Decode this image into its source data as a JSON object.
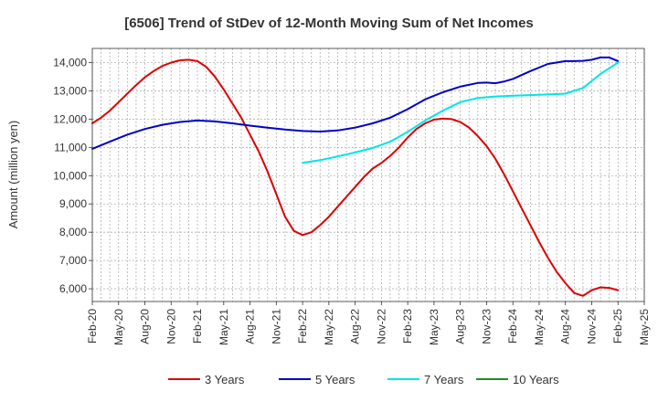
{
  "chart_data": {
    "type": "line",
    "title": "[6506]  Trend of StDev of 12-Month Moving Sum of Net Incomes",
    "xlabel": "",
    "ylabel": "Amount (million yen)",
    "x_ticks": [
      "Feb-20",
      "May-20",
      "Aug-20",
      "Nov-20",
      "Feb-21",
      "May-21",
      "Aug-21",
      "Nov-21",
      "Feb-22",
      "May-22",
      "Aug-22",
      "Nov-22",
      "Feb-23",
      "May-23",
      "Aug-23",
      "Nov-23",
      "Feb-24",
      "May-24",
      "Aug-24",
      "Nov-24",
      "Feb-25",
      "May-25"
    ],
    "y_ticks": [
      6000,
      7000,
      8000,
      9000,
      10000,
      11000,
      12000,
      13000,
      14000
    ],
    "y_tick_labels": [
      "6,000",
      "7,000",
      "8,000",
      "9,000",
      "10,000",
      "11,000",
      "12,000",
      "13,000",
      "14,000"
    ],
    "ylim": [
      5550,
      14500
    ],
    "xlim": [
      "Feb-20",
      "May-25"
    ],
    "grid": true,
    "legend_position": "bottom",
    "series": [
      {
        "name": "3 Years",
        "color": "#dd0000",
        "x": [
          "Feb-20",
          "Mar-20",
          "Apr-20",
          "May-20",
          "Jun-20",
          "Jul-20",
          "Aug-20",
          "Sep-20",
          "Oct-20",
          "Nov-20",
          "Dec-20",
          "Jan-21",
          "Feb-21",
          "Mar-21",
          "Apr-21",
          "May-21",
          "Jun-21",
          "Jul-21",
          "Aug-21",
          "Sep-21",
          "Oct-21",
          "Nov-21",
          "Dec-21",
          "Jan-22",
          "Feb-22",
          "Mar-22",
          "Apr-22",
          "May-22",
          "Jun-22",
          "Jul-22",
          "Aug-22",
          "Sep-22",
          "Oct-22",
          "Nov-22",
          "Dec-22",
          "Jan-23",
          "Feb-23",
          "Mar-23",
          "Apr-23",
          "May-23",
          "Jun-23",
          "Jul-23",
          "Aug-23",
          "Sep-23",
          "Oct-23",
          "Nov-23",
          "Dec-23",
          "Jan-24",
          "Feb-24",
          "Mar-24",
          "Apr-24",
          "May-24",
          "Jun-24",
          "Jul-24",
          "Aug-24",
          "Sep-24",
          "Oct-24",
          "Nov-24",
          "Dec-24",
          "Jan-25",
          "Feb-25"
        ],
        "values": [
          11850,
          12050,
          12300,
          12600,
          12900,
          13200,
          13480,
          13700,
          13880,
          14000,
          14080,
          14100,
          14050,
          13850,
          13500,
          13050,
          12550,
          12050,
          11450,
          10850,
          10150,
          9350,
          8550,
          8050,
          7900,
          8000,
          8250,
          8550,
          8900,
          9250,
          9600,
          9950,
          10250,
          10450,
          10700,
          11000,
          11350,
          11650,
          11850,
          11980,
          12020,
          12000,
          11900,
          11700,
          11400,
          11050,
          10600,
          10050,
          9450,
          8850,
          8250,
          7650,
          7100,
          6600,
          6200,
          5850,
          5750,
          5950,
          6050,
          6030,
          5950
        ]
      },
      {
        "name": "5 Years",
        "color": "#0000cc",
        "x": [
          "Feb-20",
          "Apr-20",
          "Jun-20",
          "Aug-20",
          "Oct-20",
          "Dec-20",
          "Feb-21",
          "Apr-21",
          "Jun-21",
          "Aug-21",
          "Oct-21",
          "Dec-21",
          "Feb-22",
          "Apr-22",
          "Jun-22",
          "Aug-22",
          "Oct-22",
          "Dec-22",
          "Feb-23",
          "Apr-23",
          "Jun-23",
          "Aug-23",
          "Oct-23",
          "Nov-23",
          "Dec-23",
          "Jan-24",
          "Feb-24",
          "Apr-24",
          "Jun-24",
          "Aug-24",
          "Sep-24",
          "Oct-24",
          "Nov-24",
          "Dec-24",
          "Jan-25",
          "Feb-25"
        ],
        "values": [
          10950,
          11200,
          11450,
          11650,
          11800,
          11900,
          11950,
          11920,
          11850,
          11770,
          11700,
          11630,
          11580,
          11560,
          11600,
          11700,
          11850,
          12050,
          12350,
          12700,
          12950,
          13150,
          13280,
          13290,
          13270,
          13330,
          13420,
          13700,
          13950,
          14050,
          14050,
          14060,
          14100,
          14180,
          14180,
          14050
        ]
      },
      {
        "name": "7 Years",
        "color": "#00e5e5",
        "x": [
          "Feb-22",
          "Apr-22",
          "Jun-22",
          "Aug-22",
          "Oct-22",
          "Dec-22",
          "Feb-23",
          "Apr-23",
          "Jun-23",
          "Aug-23",
          "Oct-23",
          "Dec-23",
          "Feb-24",
          "Apr-24",
          "Jun-24",
          "Aug-24",
          "Oct-24",
          "Nov-24",
          "Dec-24",
          "Jan-25",
          "Feb-25"
        ],
        "values": [
          10450,
          10550,
          10680,
          10820,
          10980,
          11200,
          11550,
          11950,
          12300,
          12600,
          12750,
          12800,
          12830,
          12850,
          12870,
          12900,
          13100,
          13350,
          13600,
          13800,
          14000
        ]
      },
      {
        "name": "10 Years",
        "color": "#228b22",
        "x": [],
        "values": []
      }
    ]
  }
}
